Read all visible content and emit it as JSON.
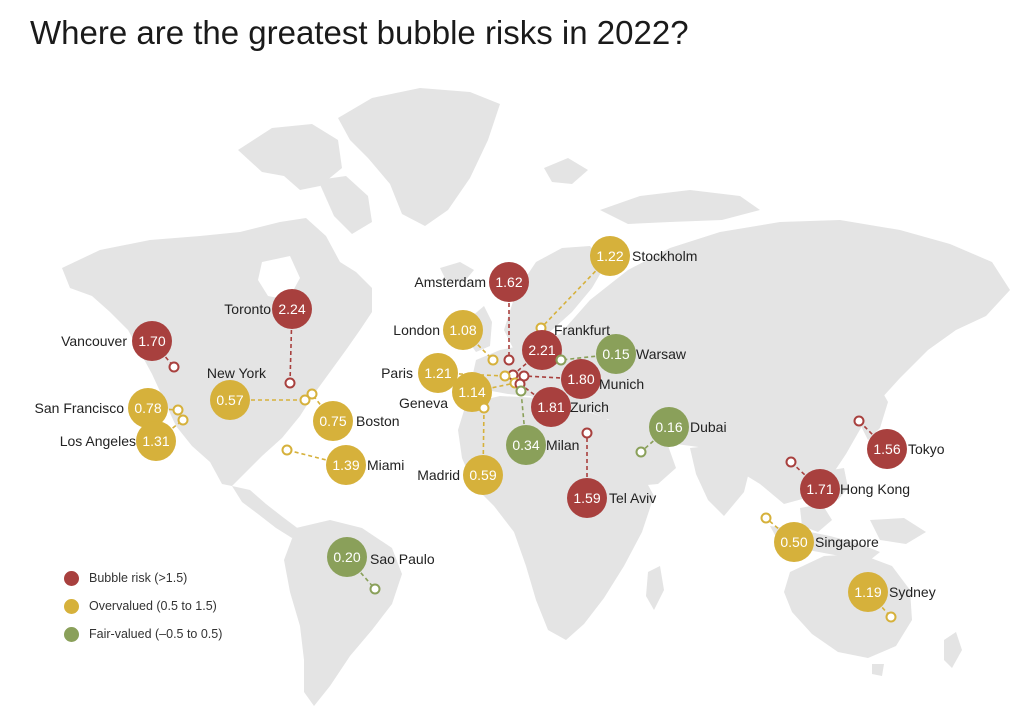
{
  "title": "Where are the greatest bubble risks in 2022?",
  "colors": {
    "bubble": "#a8403e",
    "overvalued": "#d6b13b",
    "fair": "#8aa05a",
    "land": "#e4e4e4"
  },
  "legend": [
    {
      "category": "bubble",
      "label": "Bubble risk (>1.5)"
    },
    {
      "category": "overvalued",
      "label": "Overvalued (0.5 to 1.5)"
    },
    {
      "category": "fair",
      "label": "Fair-valued (–0.5 to 0.5)"
    }
  ],
  "cities": [
    {
      "name": "Vancouver",
      "value": "1.70",
      "category": "bubble"
    },
    {
      "name": "Toronto",
      "value": "2.24",
      "category": "bubble"
    },
    {
      "name": "New York",
      "value": "0.57",
      "category": "overvalued"
    },
    {
      "name": "San Francisco",
      "value": "0.78",
      "category": "overvalued"
    },
    {
      "name": "Los Angeles",
      "value": "1.31",
      "category": "overvalued"
    },
    {
      "name": "Boston",
      "value": "0.75",
      "category": "overvalued"
    },
    {
      "name": "Miami",
      "value": "1.39",
      "category": "overvalued"
    },
    {
      "name": "Sao Paulo",
      "value": "0.20",
      "category": "fair"
    },
    {
      "name": "London",
      "value": "1.08",
      "category": "overvalued"
    },
    {
      "name": "Amsterdam",
      "value": "1.62",
      "category": "bubble"
    },
    {
      "name": "Stockholm",
      "value": "1.22",
      "category": "overvalued"
    },
    {
      "name": "Frankfurt",
      "value": "2.21",
      "category": "bubble"
    },
    {
      "name": "Warsaw",
      "value": "0.15",
      "category": "fair"
    },
    {
      "name": "Paris",
      "value": "1.21",
      "category": "overvalued"
    },
    {
      "name": "Munich",
      "value": "1.80",
      "category": "bubble"
    },
    {
      "name": "Geneva",
      "value": "1.14",
      "category": "overvalued"
    },
    {
      "name": "Zurich",
      "value": "1.81",
      "category": "bubble"
    },
    {
      "name": "Milan",
      "value": "0.34",
      "category": "fair"
    },
    {
      "name": "Madrid",
      "value": "0.59",
      "category": "overvalued"
    },
    {
      "name": "Tel Aviv",
      "value": "1.59",
      "category": "bubble"
    },
    {
      "name": "Dubai",
      "value": "0.16",
      "category": "fair"
    },
    {
      "name": "Tokyo",
      "value": "1.56",
      "category": "bubble"
    },
    {
      "name": "Hong Kong",
      "value": "1.71",
      "category": "bubble"
    },
    {
      "name": "Singapore",
      "value": "0.50",
      "category": "overvalued"
    },
    {
      "name": "Sydney",
      "value": "1.19",
      "category": "overvalued"
    }
  ]
}
